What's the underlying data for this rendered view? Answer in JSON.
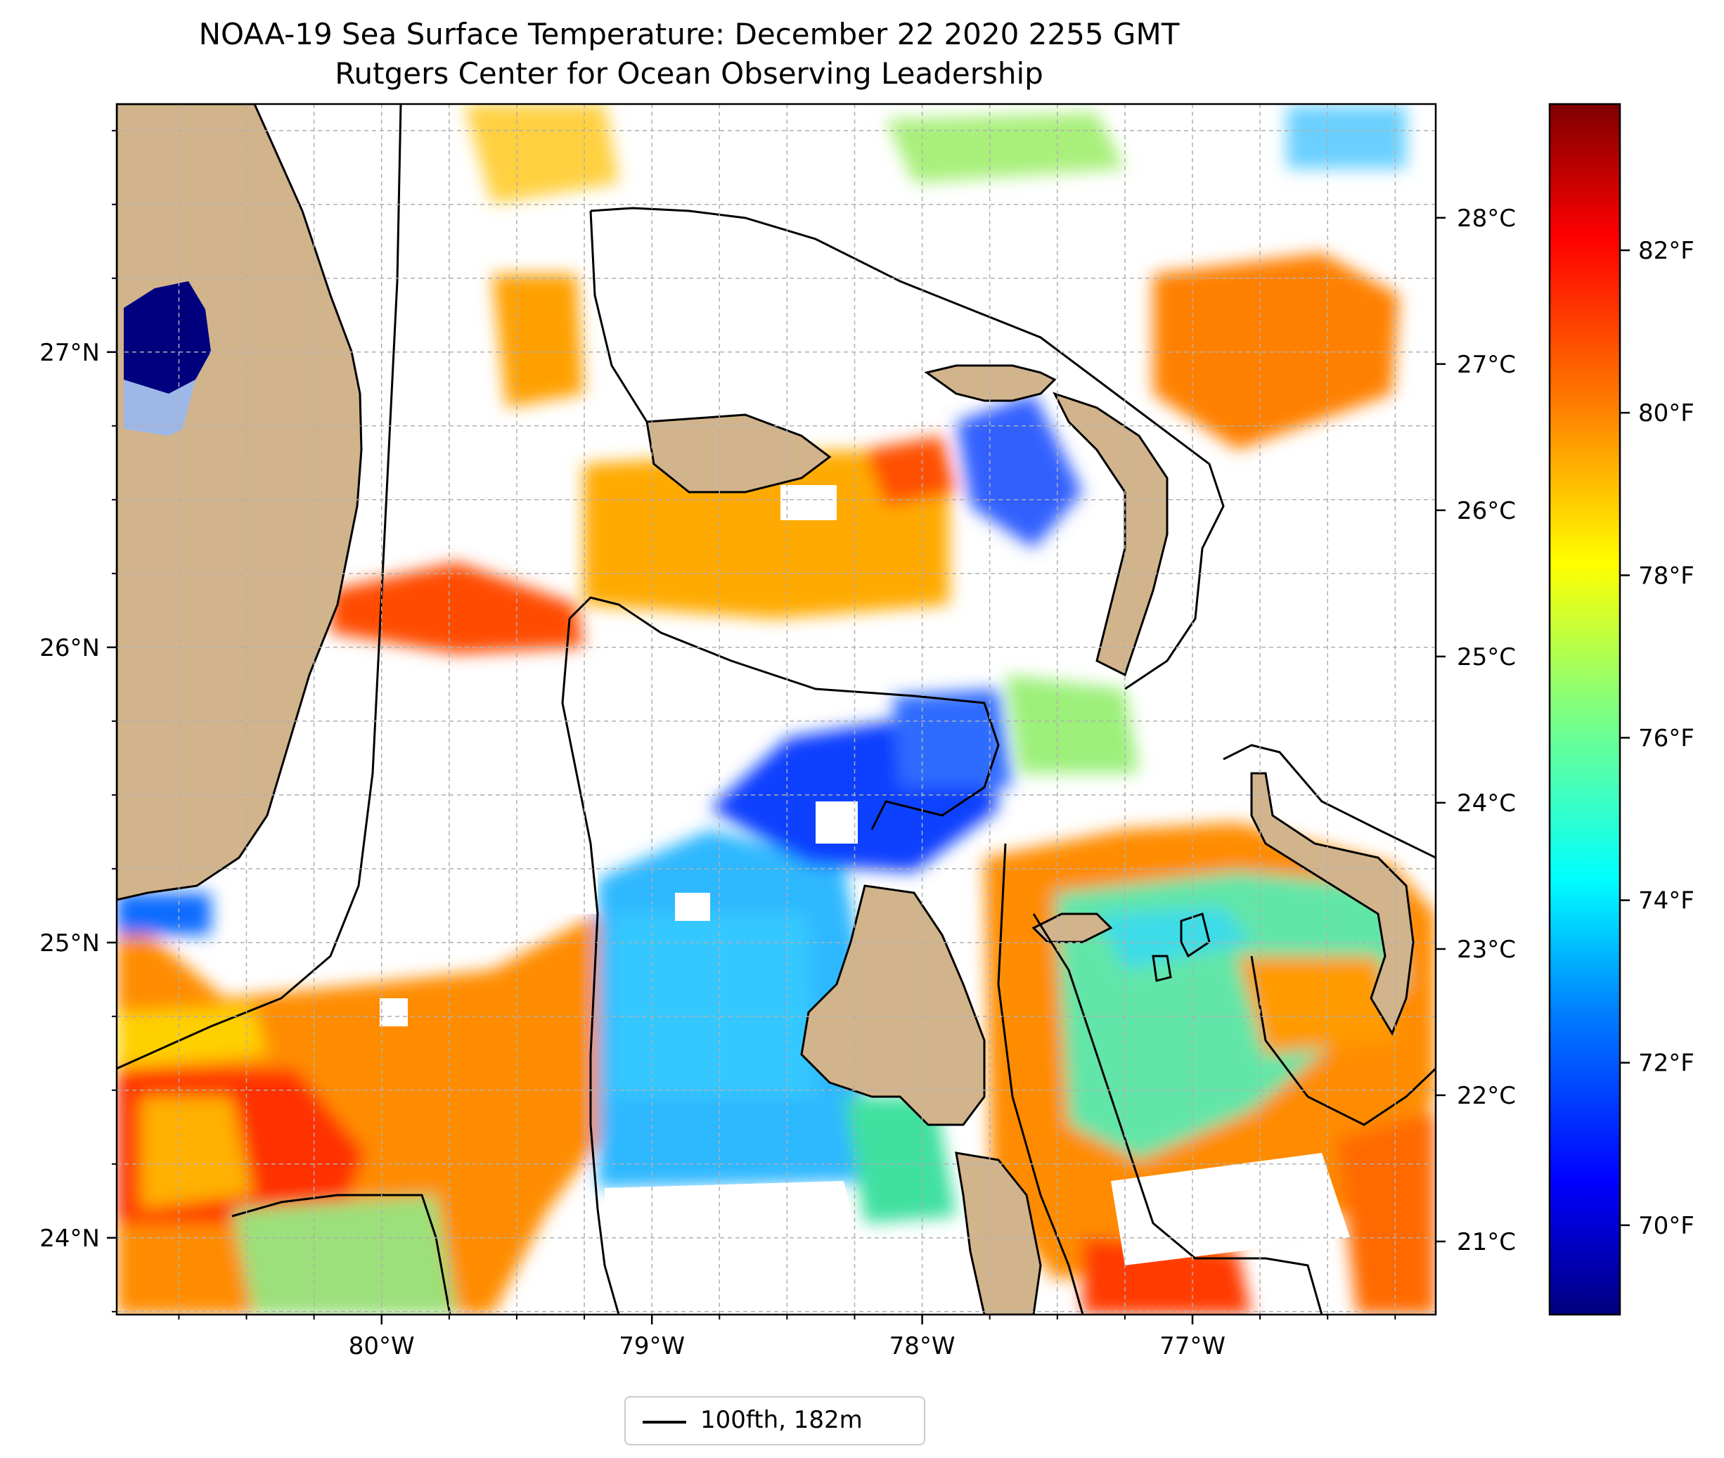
{
  "title": {
    "line1": "NOAA-19 Sea Surface Temperature: December 22 2020 2255 GMT",
    "line2": "Rutgers Center for Ocean Observing Leadership"
  },
  "map": {
    "lon_range": [
      -80.98,
      -76.1
    ],
    "lat_range": [
      23.74,
      27.84
    ],
    "lon_ticks": [
      {
        "value": -80,
        "label": "80°W"
      },
      {
        "value": -79,
        "label": "79°W"
      },
      {
        "value": -78,
        "label": "78°W"
      },
      {
        "value": -77,
        "label": "77°W"
      }
    ],
    "lat_ticks": [
      {
        "value": 24,
        "label": "24°N"
      },
      {
        "value": 25,
        "label": "25°N"
      },
      {
        "value": 26,
        "label": "26°N"
      },
      {
        "value": 27,
        "label": "27°N"
      }
    ],
    "celsius_ticks": [
      {
        "value": 21,
        "label": "21°C"
      },
      {
        "value": 22,
        "label": "22°C"
      },
      {
        "value": 23,
        "label": "23°C"
      },
      {
        "value": 24,
        "label": "24°C"
      },
      {
        "value": 25,
        "label": "25°C"
      },
      {
        "value": 26,
        "label": "26°C"
      },
      {
        "value": 27,
        "label": "27°C"
      },
      {
        "value": 28,
        "label": "28°C"
      }
    ],
    "gridlines": "dashed",
    "land_color": "#d2b48c",
    "contour_color": "#000000"
  },
  "colorbar": {
    "colormap": "jet",
    "unit": "°F",
    "range_f": [
      68.9,
      83.8
    ],
    "ticks": [
      {
        "value": 70,
        "label": "70°F"
      },
      {
        "value": 72,
        "label": "72°F"
      },
      {
        "value": 74,
        "label": "74°F"
      },
      {
        "value": 76,
        "label": "76°F"
      },
      {
        "value": 78,
        "label": "78°F"
      },
      {
        "value": 80,
        "label": "80°F"
      },
      {
        "value": 82,
        "label": "82°F"
      }
    ],
    "colors": [
      "#00007f",
      "#0000ff",
      "#007fff",
      "#00ffff",
      "#7fff7f",
      "#ffff00",
      "#ff7f00",
      "#ff0000",
      "#7f0000"
    ]
  },
  "legend": {
    "label": "100fth, 182m",
    "placement": "bottom-center"
  }
}
